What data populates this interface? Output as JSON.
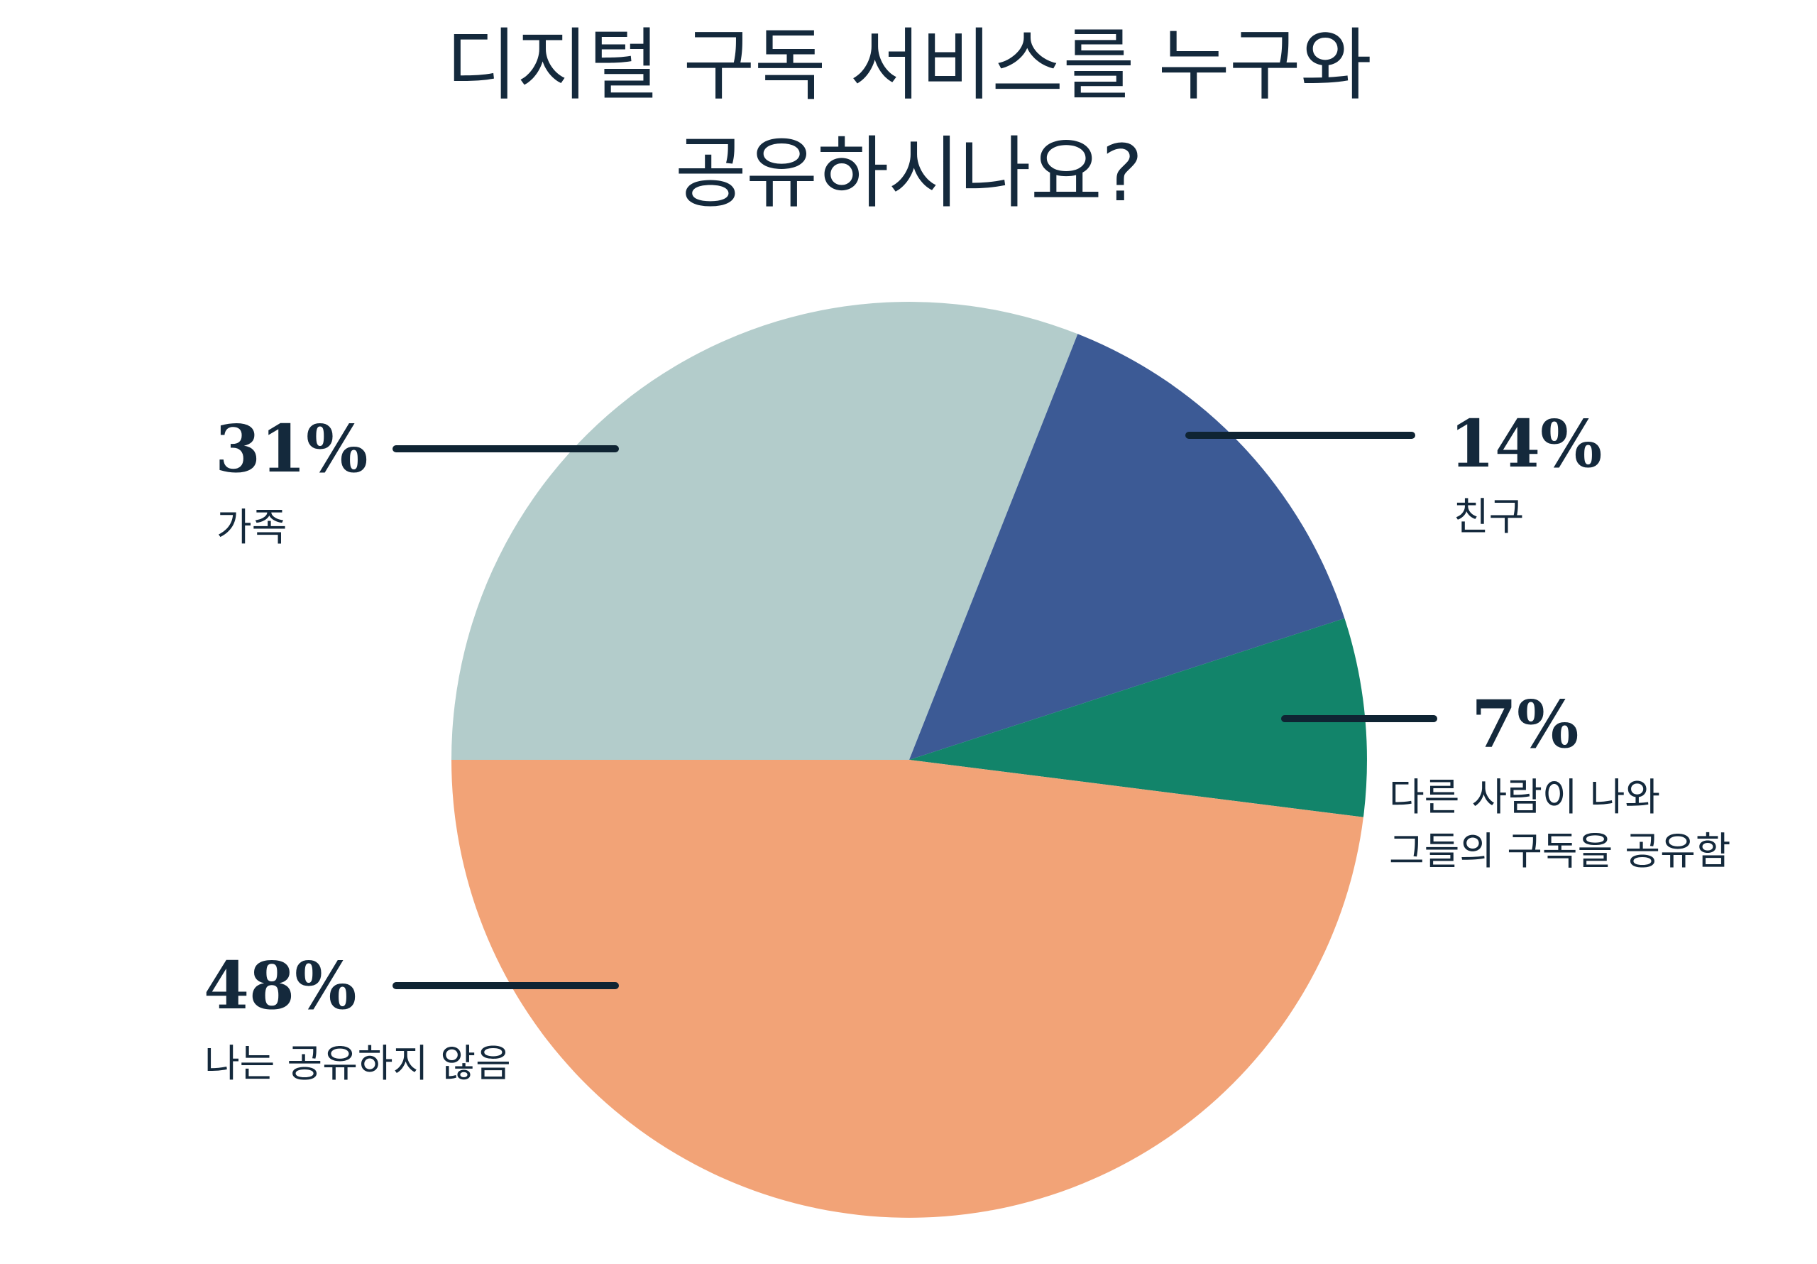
{
  "title": {
    "line1": "디지털 구독 서비스를 누구와",
    "line2": "공유하시나요?"
  },
  "colors": {
    "background": "#FFFFFF",
    "text": "#14293C",
    "leader_line": "#0F2433"
  },
  "chart_data": {
    "type": "pie",
    "title": "디지털 구독 서비스를 누구와 공유하시나요?",
    "start_angle_deg": 180,
    "direction": "clockwise",
    "legend_position": "callout-labels",
    "slices": [
      {
        "name": "family",
        "label": "가족",
        "percent_label": "31%",
        "value": 31,
        "color": "#B3CCCB",
        "callout_side": "left"
      },
      {
        "name": "friends",
        "label": "친구",
        "percent_label": "14%",
        "value": 14,
        "color": "#3C5A95",
        "callout_side": "right"
      },
      {
        "name": "others",
        "label": "다른 사람이 나와 그들의 구독을 공유함",
        "label_lines": [
          "다른 사람이 나와",
          "그들의 구독을 공유함"
        ],
        "percent_label": "7%",
        "value": 7,
        "color": "#12846A",
        "callout_side": "right"
      },
      {
        "name": "no_share",
        "label": "나는 공유하지 않음",
        "percent_label": "48%",
        "value": 48,
        "color": "#F2A377",
        "callout_side": "left"
      }
    ]
  }
}
